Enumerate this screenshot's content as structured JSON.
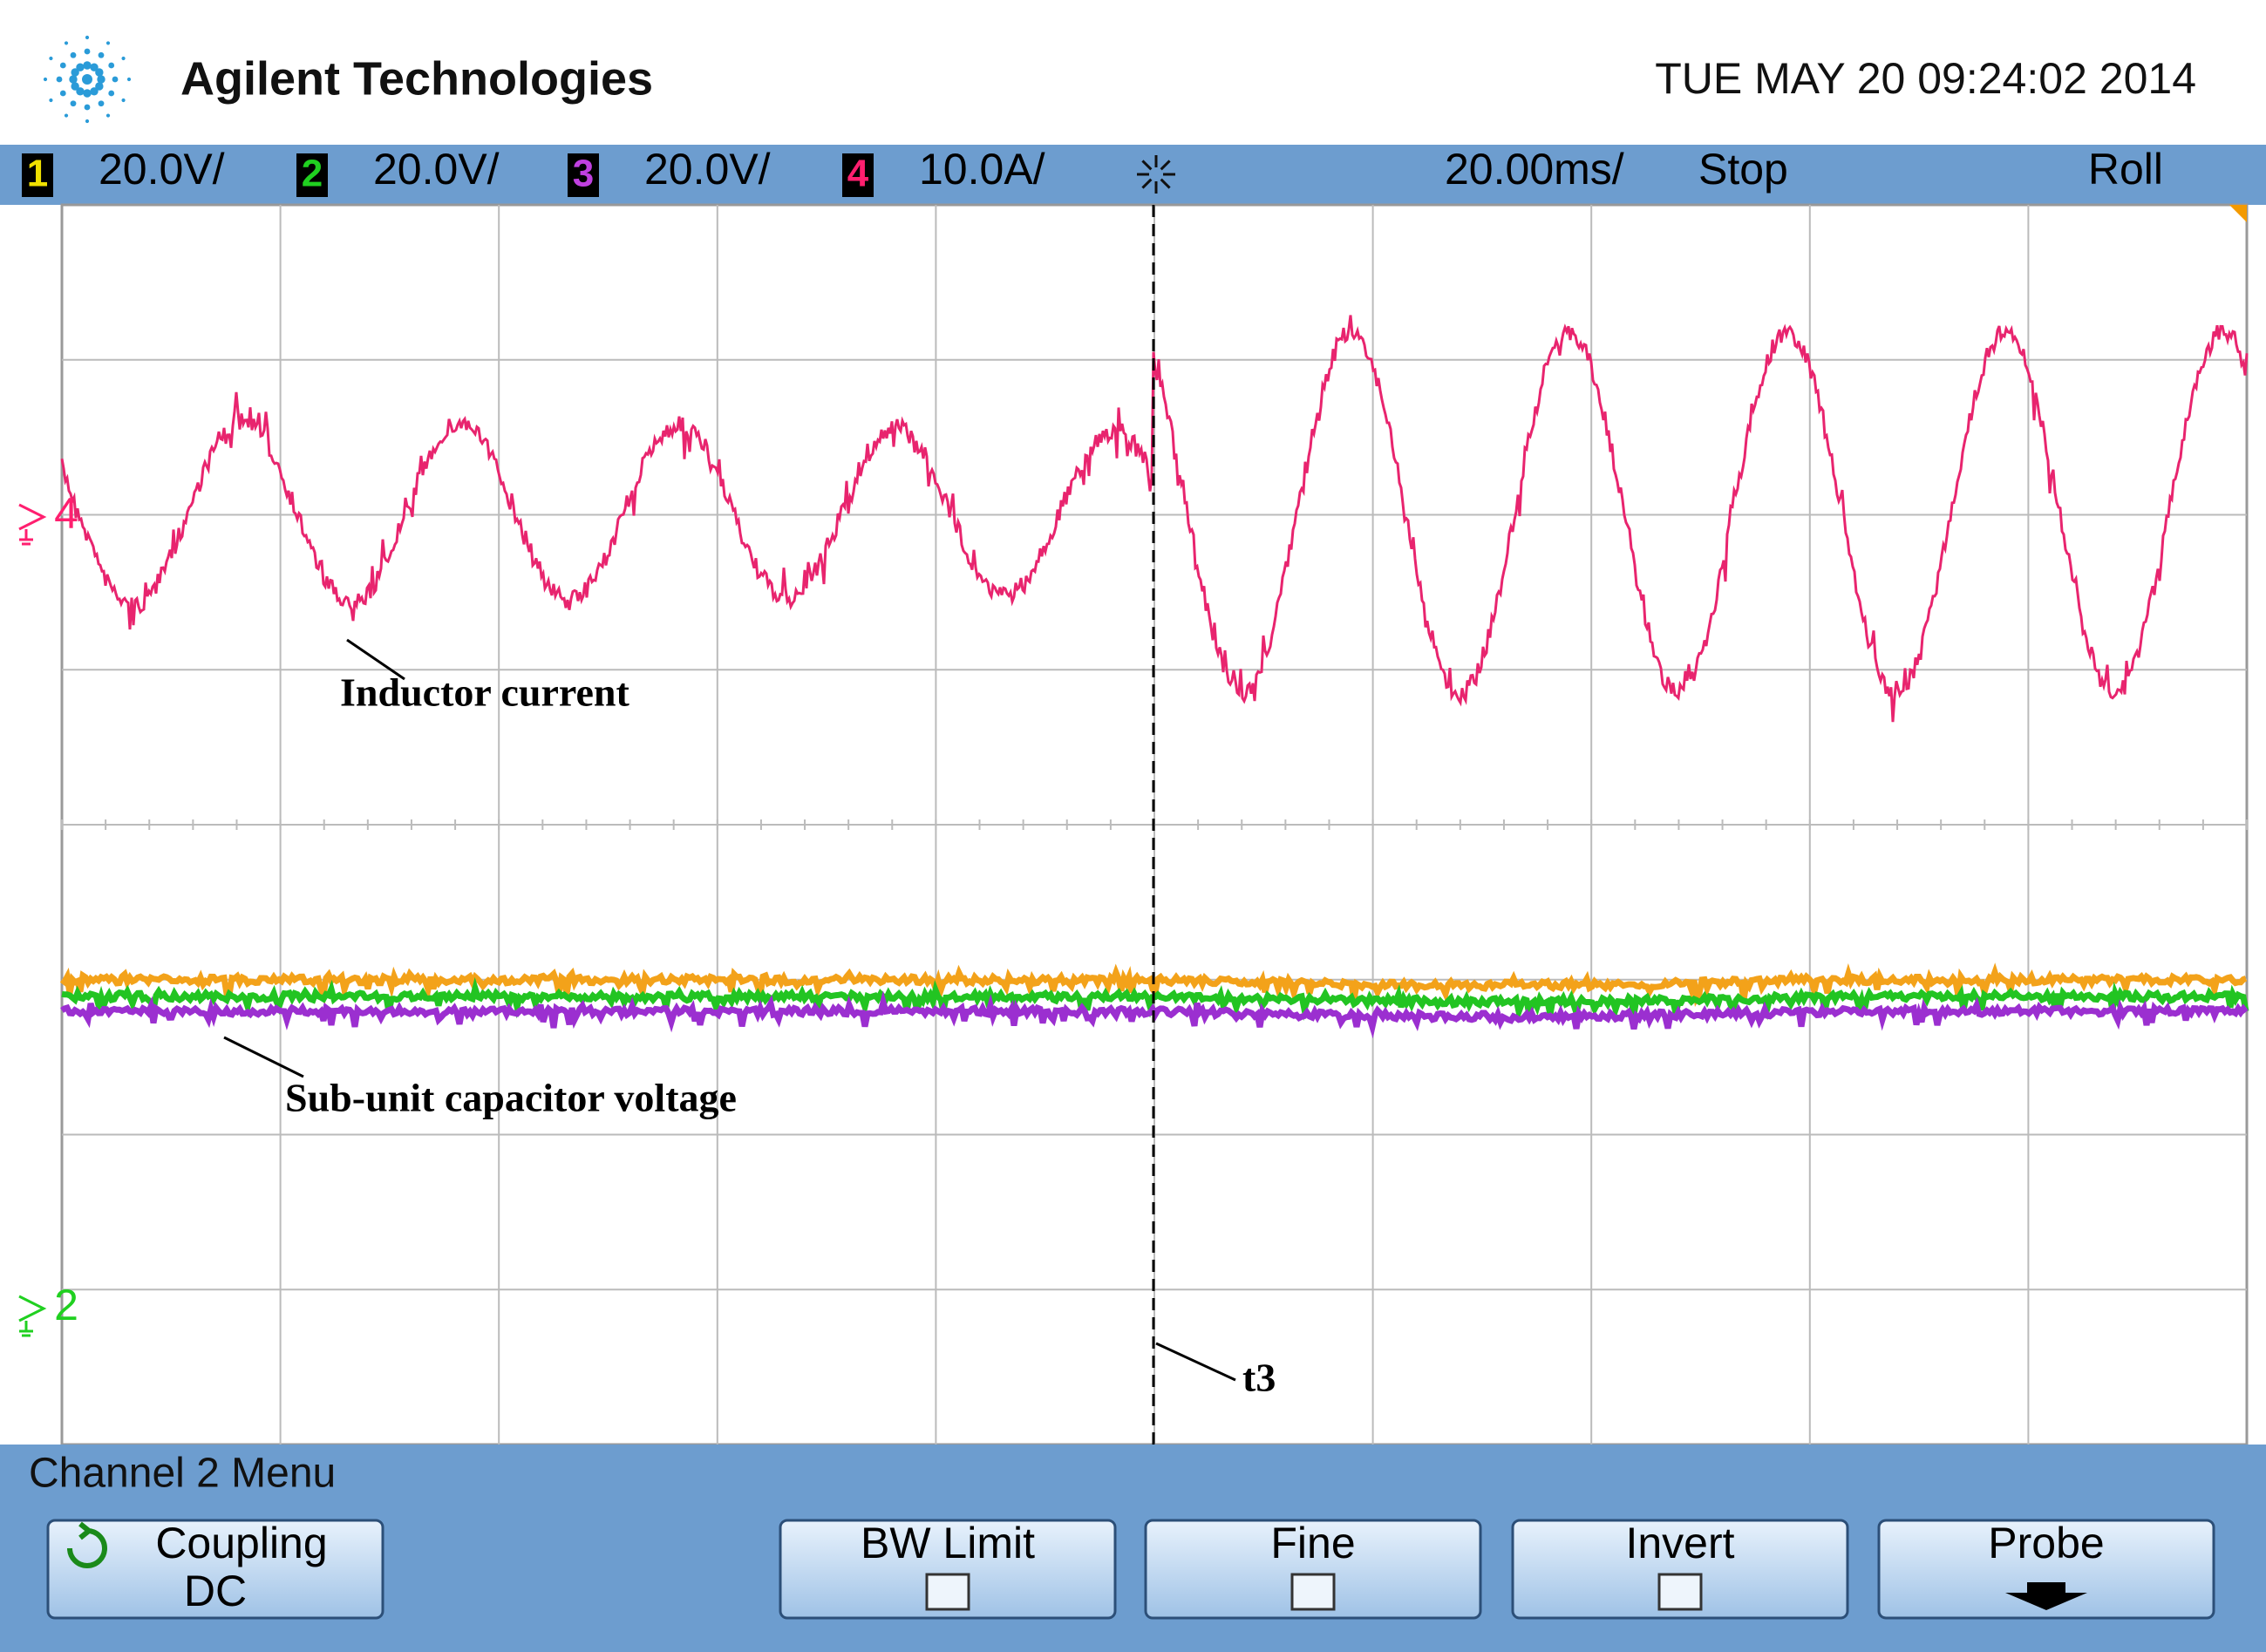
{
  "header": {
    "brand": "Agilent Technologies",
    "datetime": "TUE MAY 20 09:24:02 2014"
  },
  "status": {
    "channels": [
      {
        "number": "1",
        "scale": "20.0V/",
        "color": "#f0e000"
      },
      {
        "number": "2",
        "scale": "20.0V/",
        "color": "#20d020"
      },
      {
        "number": "3",
        "scale": "20.0V/",
        "color": "#c040e0"
      },
      {
        "number": "4",
        "scale": "10.0A/",
        "color": "#ff1f6f"
      }
    ],
    "timebase": "20.00ms/",
    "run_state": "Stop",
    "mode": "Roll"
  },
  "screen": {
    "markers": [
      {
        "label": "4",
        "color": "#ff1f6f"
      },
      {
        "label": "2",
        "color": "#20d020"
      }
    ],
    "annotations": [
      "Inductor current",
      "Sub-unit capacitor voltage",
      "t3"
    ]
  },
  "menu": {
    "title": "Channel 2  Menu",
    "softkeys": [
      {
        "label": "Coupling",
        "value": "DC"
      },
      {
        "label": "BW Limit"
      },
      {
        "label": "Fine"
      },
      {
        "label": "Invert"
      },
      {
        "label": "Probe"
      }
    ]
  }
}
